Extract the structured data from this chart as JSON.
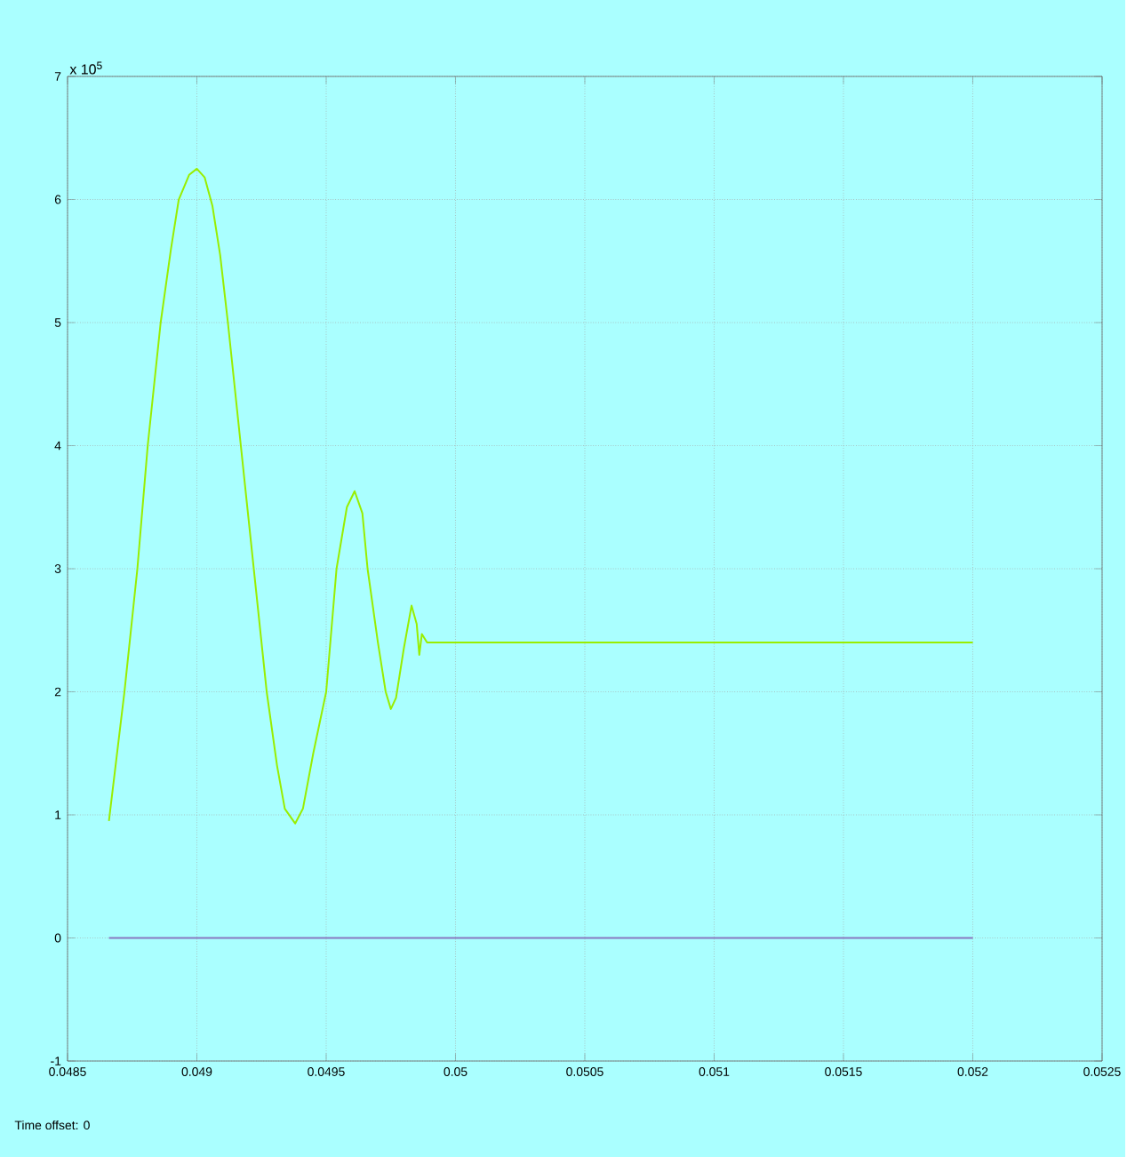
{
  "chart_data": {
    "type": "line",
    "xlim": [
      0.0485,
      0.0525
    ],
    "ylim": [
      -1,
      7
    ],
    "xticks": [
      0.0485,
      0.049,
      0.0495,
      0.05,
      0.0505,
      0.051,
      0.0515,
      0.052,
      0.0525
    ],
    "yticks": [
      -1,
      0,
      1,
      2,
      3,
      4,
      5,
      6,
      7
    ],
    "grid": true,
    "annotations": [
      "x 10$^{5}$",
      "Time offset: 0"
    ],
    "series": [
      {
        "color": "#99ee00",
        "x": [
          0.04866,
          0.04872,
          0.04877,
          0.04881,
          0.04886,
          0.0489,
          0.04893,
          0.04897,
          0.049,
          0.04903,
          0.04906,
          0.04909,
          0.04912,
          0.04917,
          0.04922,
          0.04927,
          0.04931,
          0.04934,
          0.04938,
          0.04941,
          0.04945,
          0.0495,
          0.04954,
          0.04958,
          0.04961,
          0.04964,
          0.04966,
          0.0497,
          0.04973,
          0.04975,
          0.04977,
          0.0498,
          0.04983,
          0.04985,
          0.04986,
          0.04987,
          0.04989,
          0.052
        ],
        "values": [
          0.95,
          2,
          3,
          4,
          5,
          5.6,
          6,
          6.2,
          6.25,
          6.18,
          5.95,
          5.55,
          5,
          4,
          3,
          2,
          1.4,
          1.05,
          0.93,
          1.05,
          1.5,
          2,
          3,
          3.5,
          3.63,
          3.45,
          3,
          2.4,
          2,
          1.86,
          1.95,
          2.35,
          2.7,
          2.55,
          2.3,
          2.47,
          2.4,
          2.4
        ]
      },
      {
        "color": "#8878c0",
        "x": [
          0.04866,
          0.052
        ],
        "values": [
          0,
          0
        ]
      }
    ]
  }
}
